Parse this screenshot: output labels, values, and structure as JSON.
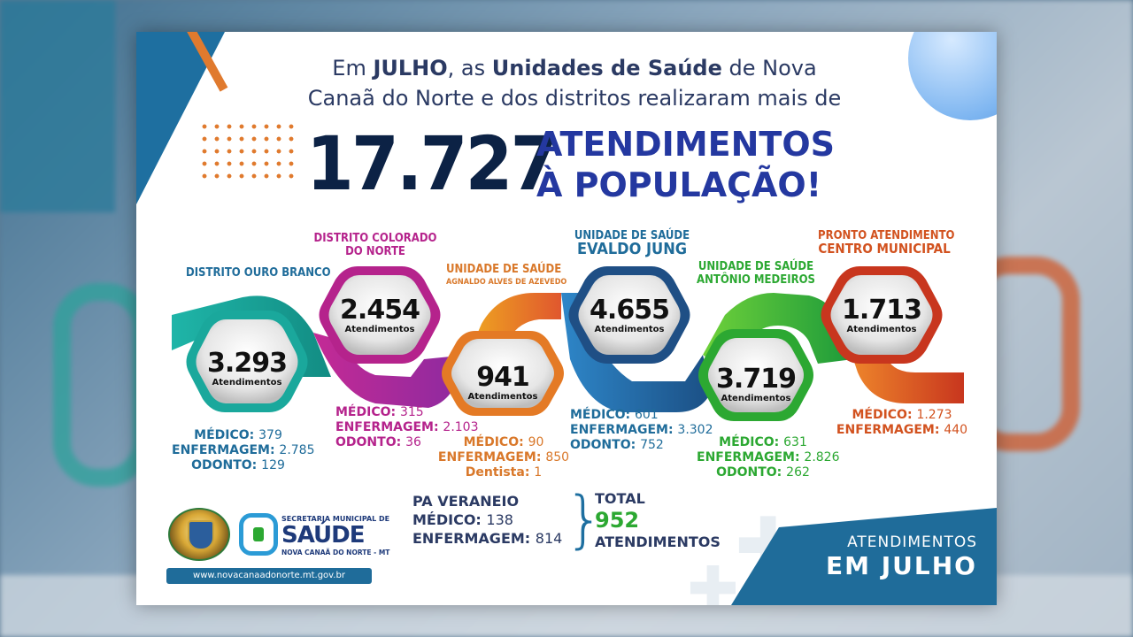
{
  "header": {
    "pre_em": "Em ",
    "month": "JULHO",
    "mid1": ", as ",
    "units": "Unidades de Saúde",
    "post_units": " de Nova",
    "line2": "Canaã do Norte e dos distritos realizaram mais de"
  },
  "total": {
    "number": "17.727",
    "label_line1": "ATENDIMENTOS",
    "label_line2": "À POPULAÇÃO!"
  },
  "units": [
    {
      "title1": "DISTRITO OURO BRANCO",
      "title2": "",
      "count": "3.293",
      "count_label": "Atendimentos",
      "stats": [
        {
          "k": "MÉDICO:",
          "v": "379"
        },
        {
          "k": "ENFERMAGEM:",
          "v": "2.785"
        },
        {
          "k": "ODONTO:",
          "v": "129"
        }
      ],
      "color": "#1aa89c"
    },
    {
      "title1": "DISTRITO COLORADO",
      "title2": "DO NORTE",
      "count": "2.454",
      "count_label": "Atendimentos",
      "stats": [
        {
          "k": "MÉDICO:",
          "v": "315"
        },
        {
          "k": "ENFERMAGEM:",
          "v": "2.103"
        },
        {
          "k": "ODONTO:",
          "v": "36"
        }
      ],
      "color": "#b5238c"
    },
    {
      "title1": "UNIDADE DE SAÚDE",
      "title2": "AGNALDO ALVES DE AZEVEDO",
      "count": "941",
      "count_label": "Atendimentos",
      "stats": [
        {
          "k": "MÉDICO:",
          "v": "90"
        },
        {
          "k": "ENFERMAGEM:",
          "v": "850"
        },
        {
          "k": "Dentista:",
          "v": "1"
        }
      ],
      "color": "#d9782a"
    },
    {
      "title1": "UNIDADE DE SAÚDE",
      "title2": "EVALDO JUNG",
      "count": "4.655",
      "count_label": "Atendimentos",
      "stats": [
        {
          "k": "MÉDICO:",
          "v": "601"
        },
        {
          "k": "ENFERMAGEM:",
          "v": "3.302"
        },
        {
          "k": "ODONTO:",
          "v": "752"
        }
      ],
      "color": "#1f6c9a"
    },
    {
      "title1": "UNIDADE DE SAÚDE",
      "title2": "ANTÔNIO MEDEIROS",
      "count": "3.719",
      "count_label": "Atendimentos",
      "stats": [
        {
          "k": "MÉDICO:",
          "v": "631"
        },
        {
          "k": "ENFERMAGEM:",
          "v": "2.826"
        },
        {
          "k": "ODONTO:",
          "v": "262"
        }
      ],
      "color": "#2ca832"
    },
    {
      "title1": "PRONTO ATENDIMENTO",
      "title2": "CENTRO MUNICIPAL",
      "count": "1.713",
      "count_label": "Atendimentos",
      "stats": [
        {
          "k": "MÉDICO:",
          "v": "1.273"
        },
        {
          "k": "ENFERMAGEM:",
          "v": "440"
        }
      ],
      "color": "#d2521f"
    }
  ],
  "pa_veraneio": {
    "title": "PA VERANEIO",
    "medico_k": "MÉDICO:",
    "medico_v": "138",
    "enf_k": "ENFERMAGEM:",
    "enf_v": "814",
    "total_label": "TOTAL",
    "total_value": "952",
    "total_unit": "ATENDIMENTOS"
  },
  "footer": {
    "line1": "ATENDIMENTOS",
    "line2": "EM JULHO",
    "url": "www.novacanaadonorte.mt.gov.br",
    "secretaria": "SECRETARIA MUNICIPAL DE",
    "saude": "SAÚDE",
    "city": "NOVA CANAÃ DO NORTE - MT"
  },
  "colors": {
    "navy": "#0c2245",
    "blue_title": "#2438a0",
    "teal": "#1aa89c",
    "magenta": "#b5238c",
    "orange": "#d9782a",
    "blue": "#1f6c9a",
    "green": "#2ca832",
    "red_orange": "#d2521f"
  }
}
